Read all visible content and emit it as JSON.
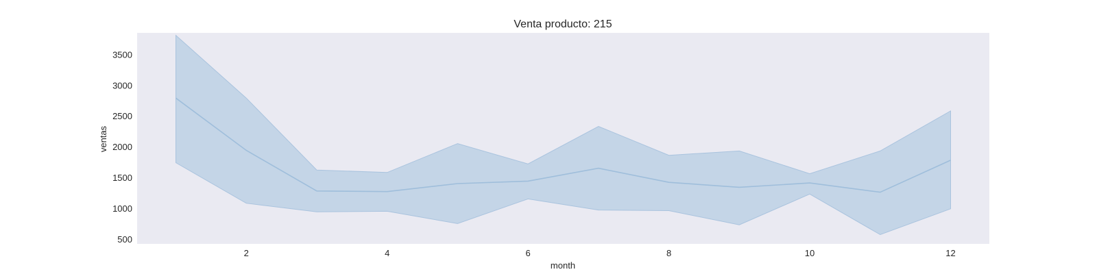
{
  "chart_data": {
    "type": "line",
    "title": "Venta producto: 215",
    "xlabel": "month",
    "ylabel": "ventas",
    "xlim": [
      0.45,
      12.55
    ],
    "ylim": [
      420,
      3850
    ],
    "xticks": [
      2,
      4,
      6,
      8,
      10,
      12
    ],
    "yticks": [
      500,
      1000,
      1500,
      2000,
      2500,
      3000,
      3500
    ],
    "grid": false,
    "legend": "none",
    "series": [
      {
        "x": [
          1,
          2,
          3,
          4,
          5,
          6,
          7,
          8,
          9,
          10,
          11,
          12
        ],
        "mean": [
          2790,
          1940,
          1280,
          1270,
          1400,
          1440,
          1650,
          1420,
          1340,
          1410,
          1260,
          1780
        ],
        "lower": [
          1740,
          1080,
          940,
          950,
          750,
          1150,
          970,
          960,
          730,
          1230,
          570,
          990
        ],
        "upper": [
          3810,
          2790,
          1620,
          1580,
          2050,
          1720,
          2330,
          1860,
          1930,
          1560,
          1930,
          2580
        ]
      }
    ],
    "colors": {
      "plot_background": "#eaeaf2",
      "line": "#9fbedb",
      "band_fill": "#b7cde3",
      "band_edge": "#a9c3de"
    }
  }
}
